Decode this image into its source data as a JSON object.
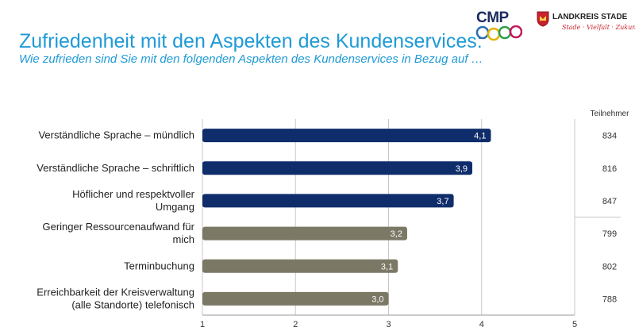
{
  "header": {
    "title": "Zufriedenheit mit den Aspekten des Kundenservices:",
    "subtitle": "Wie zufrieden sind Sie mit den folgenden Aspekten des Kundenservices in Bezug auf …"
  },
  "logos": {
    "cmp": "CMP",
    "landkreis": "LANDKREIS STADE",
    "slogan": "Stade · Vielfalt · Zukunft"
  },
  "colors": {
    "title": "#1f9ad6",
    "bar_blue": "#0f2d6b",
    "bar_gray": "#7b7866",
    "grid": "#c8c8c8"
  },
  "chart_data": {
    "type": "bar",
    "orientation": "horizontal",
    "categories": [
      [
        "Verständliche Sprache – mündlich"
      ],
      [
        "Verständliche Sprache – schriftlich"
      ],
      [
        "Höflicher und respektvoller",
        "Umgang"
      ],
      [
        "Geringer Ressourcenaufwand für",
        "mich"
      ],
      [
        "Terminbuchung"
      ],
      [
        "Erreichbarkeit der Kreisverwaltung",
        "(alle Standorte) telefonisch"
      ]
    ],
    "values": [
      4.1,
      3.9,
      3.7,
      3.2,
      3.1,
      3.0
    ],
    "value_labels": [
      "4,1",
      "3,9",
      "3,7",
      "3,2",
      "3,1",
      "3,0"
    ],
    "bar_colors": [
      "#0f2d6b",
      "#0f2d6b",
      "#0f2d6b",
      "#7b7866",
      "#7b7866",
      "#7b7866"
    ],
    "participants_header": "Teilnehmer",
    "participants": [
      "834",
      "816",
      "847",
      "799",
      "802",
      "788"
    ],
    "xlim": [
      1,
      5
    ],
    "xticks": [
      "1",
      "2",
      "3",
      "4",
      "5"
    ],
    "grid": true
  }
}
